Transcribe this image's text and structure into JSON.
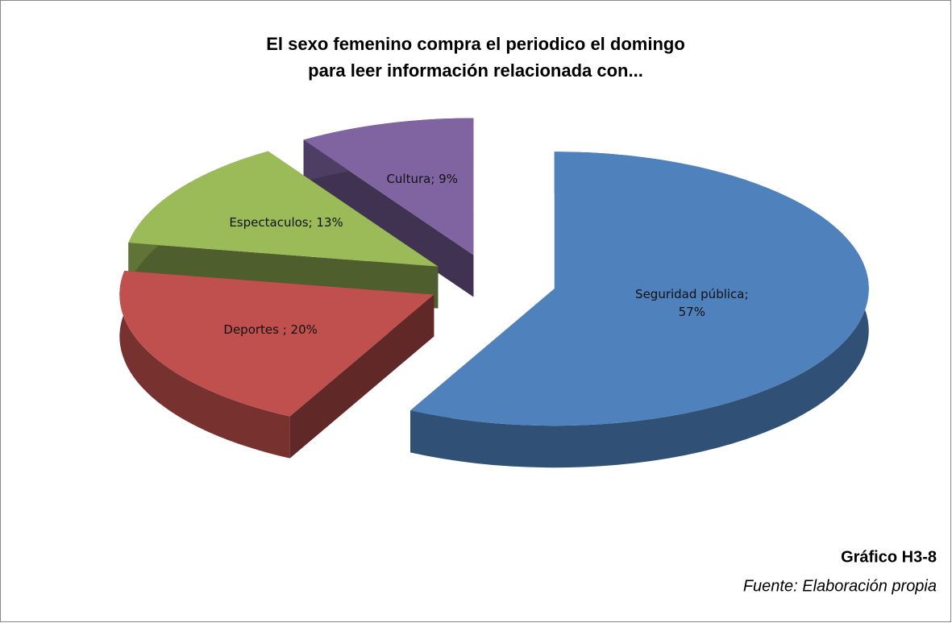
{
  "chart_data": {
    "type": "pie",
    "three_d": true,
    "exploded": true,
    "title": [
      "El sexo femenino compra el periodico el domingo",
      "para leer información relacionada con..."
    ],
    "values": [
      57,
      20,
      13,
      9
    ],
    "value_labels": [
      "Seguridad pública; 57%",
      "Deportes ; 20%",
      "Espectaculos; 13%",
      "Cultura; 9%"
    ],
    "colors": [
      "#4f81bd",
      "#c0504d",
      "#9bbb59",
      "#8064a2"
    ]
  },
  "caption": {
    "label": "Gráfico H3-8",
    "source": "Fuente: Elaboración propia"
  }
}
